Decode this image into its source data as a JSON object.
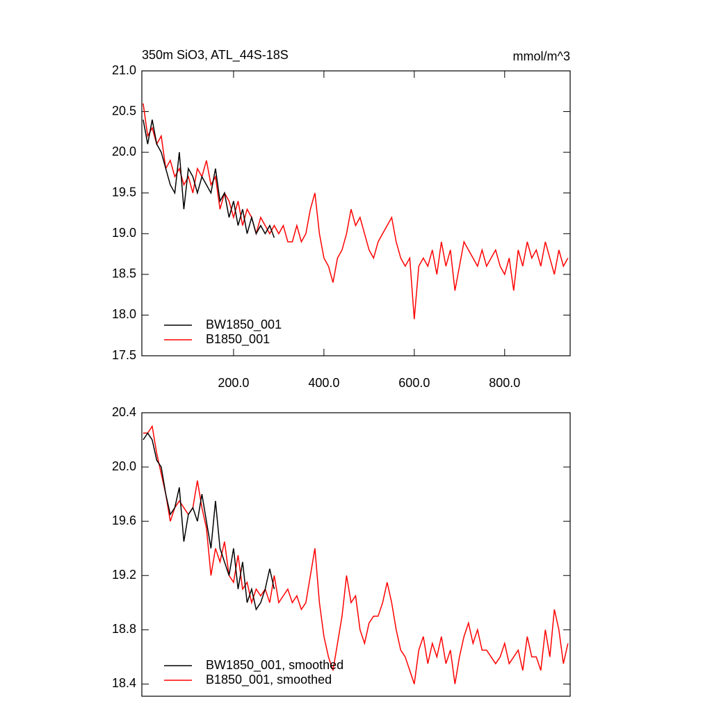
{
  "chart_data": [
    {
      "type": "line",
      "title": "350m SiO3, ATL_44S-18S",
      "units": "mmol/m^3",
      "x": [
        0,
        10,
        20,
        30,
        40,
        50,
        60,
        70,
        80,
        90,
        100,
        110,
        120,
        130,
        140,
        150,
        160,
        170,
        180,
        190,
        200,
        210,
        220,
        230,
        240,
        250,
        260,
        270,
        280,
        290,
        300,
        310,
        320,
        330,
        340,
        350,
        360,
        370,
        380,
        390,
        400,
        410,
        420,
        430,
        440,
        450,
        460,
        470,
        480,
        490,
        500,
        510,
        520,
        530,
        540,
        550,
        560,
        570,
        580,
        590,
        600,
        610,
        620,
        630,
        640,
        650,
        660,
        670,
        680,
        690,
        700,
        710,
        720,
        730,
        740,
        750,
        760,
        770,
        780,
        790,
        800,
        810,
        820,
        830,
        840,
        850,
        860,
        870,
        880,
        890,
        900,
        910,
        920,
        930,
        940
      ],
      "series": [
        {
          "name": "BW1850_001",
          "color": "#000000",
          "values": [
            20.4,
            20.1,
            20.4,
            20.1,
            20.0,
            19.8,
            19.6,
            19.5,
            20.0,
            19.3,
            19.8,
            19.7,
            19.5,
            19.7,
            19.6,
            19.5,
            19.8,
            19.4,
            19.5,
            19.2,
            19.4,
            19.1,
            19.3,
            19.0,
            19.2,
            19.0,
            19.1,
            19.0,
            19.1,
            18.95,
            null,
            null,
            null,
            null,
            null,
            null,
            null,
            null,
            null,
            null,
            null,
            null,
            null,
            null,
            null,
            null,
            null,
            null,
            null,
            null,
            null,
            null,
            null,
            null,
            null,
            null,
            null,
            null,
            null,
            null,
            null,
            null,
            null,
            null,
            null,
            null,
            null,
            null,
            null,
            null,
            null,
            null,
            null,
            null,
            null,
            null,
            null,
            null,
            null,
            null,
            null,
            null,
            null,
            null,
            null,
            null,
            null,
            null,
            null,
            null,
            null,
            null,
            null,
            null,
            null
          ]
        },
        {
          "name": "B1850_001",
          "color": "#ff0000",
          "values": [
            20.6,
            20.2,
            20.3,
            20.1,
            20.2,
            19.8,
            19.9,
            19.7,
            19.8,
            19.6,
            19.7,
            19.5,
            19.8,
            19.7,
            19.9,
            19.6,
            19.7,
            19.3,
            19.5,
            19.4,
            19.2,
            19.4,
            19.1,
            19.3,
            19.2,
            19.0,
            19.2,
            19.1,
            19.0,
            19.1,
            19.0,
            19.1,
            18.9,
            18.9,
            19.1,
            18.9,
            19.0,
            19.3,
            19.5,
            19.0,
            18.7,
            18.6,
            18.4,
            18.7,
            18.8,
            19.0,
            19.3,
            19.1,
            19.2,
            19.0,
            18.8,
            18.7,
            18.9,
            19.0,
            19.1,
            19.2,
            18.9,
            18.7,
            18.6,
            18.7,
            17.95,
            18.6,
            18.7,
            18.6,
            18.8,
            18.5,
            18.9,
            18.6,
            18.8,
            18.3,
            18.6,
            18.9,
            18.8,
            18.7,
            18.6,
            18.8,
            18.6,
            18.7,
            18.8,
            18.6,
            18.5,
            18.7,
            18.3,
            18.8,
            18.6,
            18.9,
            18.7,
            18.8,
            18.6,
            18.9,
            18.7,
            18.5,
            18.8,
            18.6,
            18.7
          ]
        }
      ],
      "xlim": [
        -3,
        945
      ],
      "xticks": [
        {
          "value": 200,
          "label": "200.0"
        },
        {
          "value": 400,
          "label": "400.0"
        },
        {
          "value": 600,
          "label": "600.0"
        },
        {
          "value": 800,
          "label": "800.0"
        }
      ],
      "ylim": [
        17.5,
        21.0
      ],
      "yticks": [
        {
          "value": 17.5,
          "label": "17.5"
        },
        {
          "value": 18,
          "label": "18.0"
        },
        18.5,
        {
          "value": 19,
          "label": "19.0"
        },
        19.5,
        {
          "value": 20,
          "label": "20.0"
        },
        20.5,
        {
          "value": 21,
          "label": "21.0"
        }
      ],
      "legend": "lower left"
    },
    {
      "type": "line",
      "x": [
        0,
        10,
        20,
        30,
        40,
        50,
        60,
        70,
        80,
        90,
        100,
        110,
        120,
        130,
        140,
        150,
        160,
        170,
        180,
        190,
        200,
        210,
        220,
        230,
        240,
        250,
        260,
        270,
        280,
        290,
        300,
        310,
        320,
        330,
        340,
        350,
        360,
        370,
        380,
        390,
        400,
        410,
        420,
        430,
        440,
        450,
        460,
        470,
        480,
        490,
        500,
        510,
        520,
        530,
        540,
        550,
        560,
        570,
        580,
        590,
        600,
        610,
        620,
        630,
        640,
        650,
        660,
        670,
        680,
        690,
        700,
        710,
        720,
        730,
        740,
        750,
        760,
        770,
        780,
        790,
        800,
        810,
        820,
        830,
        840,
        850,
        860,
        870,
        880,
        890,
        900,
        910,
        920,
        930,
        940
      ],
      "series": [
        {
          "name": "BW1850_001, smoothed",
          "color": "#000000",
          "values": [
            20.2,
            20.25,
            20.2,
            20.05,
            20.0,
            19.8,
            19.65,
            19.7,
            19.85,
            19.45,
            19.65,
            19.7,
            19.6,
            19.8,
            19.6,
            19.4,
            19.75,
            19.4,
            19.3,
            19.2,
            19.4,
            19.1,
            19.3,
            19.0,
            19.1,
            18.95,
            19.0,
            19.1,
            19.25,
            19.1,
            null,
            null,
            null,
            null,
            null,
            null,
            null,
            null,
            null,
            null,
            null,
            null,
            null,
            null,
            null,
            null,
            null,
            null,
            null,
            null,
            null,
            null,
            null,
            null,
            null,
            null,
            null,
            null,
            null,
            null,
            null,
            null,
            null,
            null,
            null,
            null,
            null,
            null,
            null,
            null,
            null,
            null,
            null,
            null,
            null,
            null,
            null,
            null,
            null,
            null,
            null,
            null,
            null,
            null,
            null,
            null,
            null,
            null,
            null,
            null,
            null,
            null,
            null,
            null,
            null
          ]
        },
        {
          "name": "B1850_001, smoothed",
          "color": "#ff0000",
          "values": [
            20.25,
            20.25,
            20.3,
            20.1,
            19.95,
            19.8,
            19.6,
            19.7,
            19.75,
            19.7,
            19.65,
            19.7,
            19.9,
            19.7,
            19.55,
            19.2,
            19.4,
            19.3,
            19.45,
            19.2,
            19.15,
            19.35,
            19.1,
            19.15,
            19.0,
            19.1,
            19.05,
            19.1,
            19.0,
            19.2,
            19.0,
            19.05,
            19.1,
            19.0,
            19.05,
            18.95,
            19.0,
            19.2,
            19.4,
            19.0,
            18.75,
            18.6,
            18.5,
            18.7,
            18.9,
            19.2,
            19.0,
            19.05,
            18.8,
            18.7,
            18.85,
            18.9,
            18.9,
            19.0,
            19.15,
            19.0,
            18.8,
            18.65,
            18.6,
            18.5,
            18.4,
            18.65,
            18.75,
            18.55,
            18.7,
            18.6,
            18.75,
            18.55,
            18.65,
            18.4,
            18.6,
            18.75,
            18.85,
            18.7,
            18.8,
            18.65,
            18.65,
            18.6,
            18.55,
            18.6,
            18.7,
            18.55,
            18.6,
            18.65,
            18.5,
            18.75,
            18.6,
            18.6,
            18.5,
            18.8,
            18.6,
            18.95,
            18.8,
            18.55,
            18.7
          ]
        }
      ],
      "xlim": [
        -3,
        945
      ],
      "ylim": [
        18.31,
        20.4
      ],
      "yticks": [
        18.4,
        18.8,
        19.2,
        19.6,
        {
          "value": 20,
          "label": "20.0"
        },
        20.4
      ],
      "legend": "lower left"
    }
  ]
}
